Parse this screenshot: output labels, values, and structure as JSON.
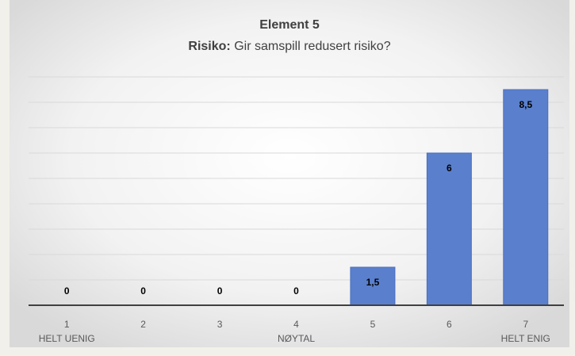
{
  "chart_data": {
    "type": "bar",
    "title": "Element 5",
    "subtitle_label": "Risiko:",
    "subtitle": "Gir samspill redusert risiko?",
    "categories": [
      "1",
      "2",
      "3",
      "4",
      "5",
      "6",
      "7"
    ],
    "category_sublabels": [
      "HELT UENIG",
      null,
      null,
      "NØYTAL",
      null,
      null,
      "HELT ENIG"
    ],
    "values": [
      0,
      0,
      0,
      0,
      1.5,
      6,
      8.5
    ],
    "value_labels": [
      "0",
      "0",
      "0",
      "0",
      "1,5",
      "6",
      "8,5"
    ],
    "color": "#5a7fcd",
    "ylim": [
      0,
      9
    ],
    "yticks": [
      0,
      1,
      2,
      3,
      4,
      5,
      6,
      7,
      8,
      9
    ],
    "grid": true
  }
}
